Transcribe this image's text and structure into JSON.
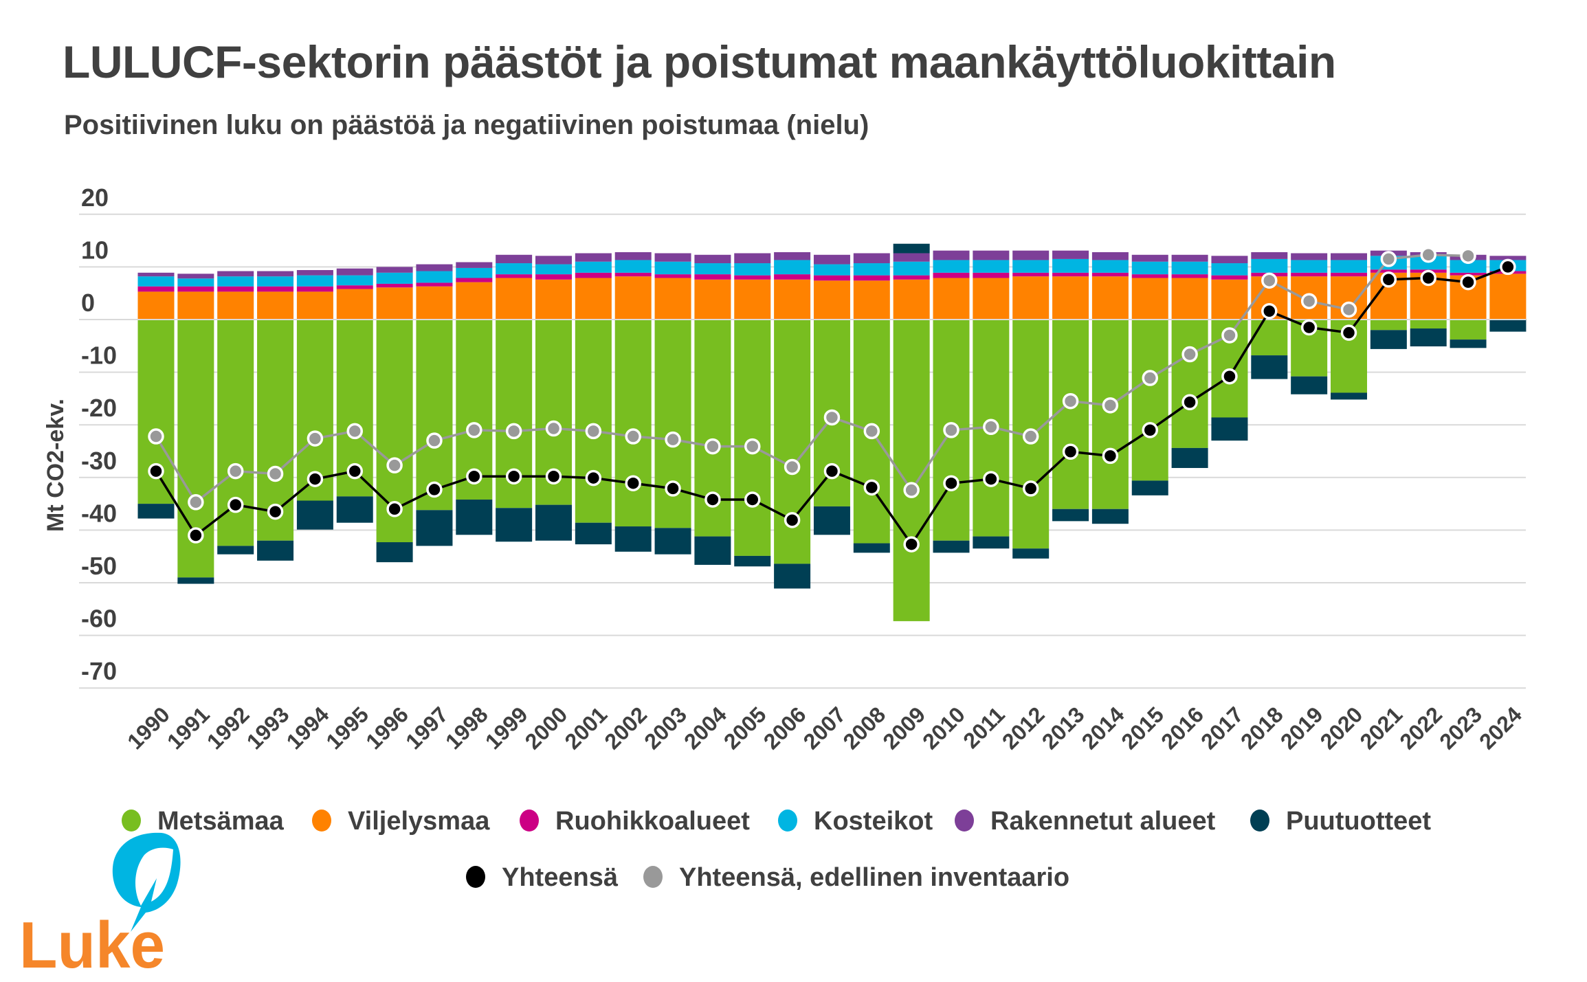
{
  "header": {
    "title": "LULUCF-sektorin päästöt ja poistumat maankäyttöluokittain",
    "subtitle": "Positiivinen luku on päästöä ja negatiivinen poistumaa (nielu)"
  },
  "logo": {
    "text": "Luke"
  },
  "chart_data": {
    "type": "bar",
    "stacked": true,
    "title": "LULUCF-sektorin päästöt ja poistumat maankäyttöluokittain",
    "subtitle": "Positiivinen luku on päästöä ja negatiivinen poistumaa (nielu)",
    "xlabel": "",
    "ylabel": "Mt CO2-ekv.",
    "ylim": [
      -70,
      20
    ],
    "yticks": [
      20,
      10,
      0,
      -10,
      -20,
      -30,
      -40,
      -50,
      -60,
      -70
    ],
    "grid": true,
    "legend_position": "bottom",
    "categories": [
      "1990",
      "1991",
      "1992",
      "1993",
      "1994",
      "1995",
      "1996",
      "1997",
      "1998",
      "1999",
      "2000",
      "2001",
      "2002",
      "2003",
      "2004",
      "2005",
      "2006",
      "2007",
      "2008",
      "2009",
      "2010",
      "2011",
      "2012",
      "2013",
      "2014",
      "2015",
      "2016",
      "2017",
      "2018",
      "2019",
      "2020",
      "2021",
      "2022",
      "2023",
      "2024"
    ],
    "series": [
      {
        "name": "Metsämaa",
        "color": "#78be20",
        "values": [
          -35.0,
          -49.0,
          -43.0,
          -42.0,
          -34.4,
          -33.6,
          -42.3,
          -36.2,
          -34.2,
          -35.8,
          -35.2,
          -38.6,
          -39.3,
          -39.6,
          -41.2,
          -44.9,
          -46.4,
          -35.5,
          -42.5,
          -57.3,
          -42.0,
          -41.2,
          -43.5,
          -36.0,
          -36.0,
          -30.6,
          -24.4,
          -18.6,
          -6.8,
          -10.8,
          -13.9,
          -2.0,
          -1.7,
          -3.8,
          0.0
        ]
      },
      {
        "name": "Viljelysmaa",
        "color": "#ff8200",
        "values": [
          5.3,
          5.3,
          5.3,
          5.3,
          5.3,
          5.8,
          6.1,
          6.3,
          7.1,
          7.9,
          7.6,
          7.9,
          8.2,
          7.9,
          7.6,
          7.6,
          7.6,
          7.4,
          7.4,
          7.6,
          7.9,
          7.9,
          8.2,
          8.2,
          8.2,
          7.9,
          7.9,
          7.6,
          8.2,
          8.2,
          8.2,
          8.9,
          8.9,
          8.4,
          8.7
        ]
      },
      {
        "name": "Ruohikkoalueet",
        "color": "#cc0084",
        "values": [
          1.0,
          1.0,
          1.0,
          1.0,
          1.0,
          0.7,
          0.7,
          0.7,
          0.8,
          0.7,
          1.0,
          1.0,
          0.7,
          0.7,
          1.0,
          0.8,
          1.0,
          1.0,
          1.0,
          0.8,
          1.0,
          1.0,
          0.7,
          0.7,
          0.7,
          0.7,
          0.7,
          0.8,
          0.7,
          0.7,
          0.7,
          0.6,
          0.6,
          0.5,
          0.5
        ]
      },
      {
        "name": "Kosteikot",
        "color": "#00b5e2",
        "values": [
          1.9,
          1.5,
          1.9,
          1.9,
          2.1,
          1.9,
          2.1,
          2.2,
          1.9,
          2.1,
          1.9,
          2.1,
          2.4,
          2.4,
          2.1,
          2.3,
          2.7,
          2.1,
          2.3,
          2.6,
          2.4,
          2.4,
          2.4,
          2.6,
          2.4,
          2.4,
          2.4,
          2.3,
          2.6,
          2.4,
          2.4,
          2.6,
          2.6,
          2.4,
          2.1
        ]
      },
      {
        "name": "Rakennetut alueet",
        "color": "#7d3f98",
        "values": [
          0.7,
          0.9,
          1.0,
          1.0,
          1.0,
          1.3,
          1.1,
          1.3,
          1.1,
          1.6,
          1.6,
          1.6,
          1.5,
          1.6,
          1.6,
          1.9,
          1.5,
          1.8,
          1.9,
          1.6,
          1.8,
          1.8,
          1.8,
          1.6,
          1.5,
          1.3,
          1.3,
          1.4,
          1.3,
          1.3,
          1.3,
          1.0,
          0.7,
          1.0,
          0.8
        ]
      },
      {
        "name": "Puutuotteet",
        "color": "#003f54",
        "values": [
          -2.8,
          -1.2,
          -1.6,
          -3.8,
          -5.5,
          -5.0,
          -3.8,
          -6.8,
          -6.7,
          -6.4,
          -6.8,
          -4.1,
          -4.8,
          -5.0,
          -5.4,
          -2.0,
          -4.7,
          -5.4,
          -1.8,
          1.8,
          -2.3,
          -2.3,
          -1.9,
          -2.3,
          -2.8,
          -2.8,
          -3.8,
          -4.4,
          -4.5,
          -3.4,
          -1.3,
          -3.6,
          -3.4,
          -1.6,
          -2.3
        ]
      }
    ],
    "lines": [
      {
        "name": "Yhteensä",
        "color": "#000000",
        "values": [
          -28.8,
          -41.0,
          -35.2,
          -36.5,
          -30.3,
          -28.8,
          -36.0,
          -32.3,
          -29.8,
          -29.8,
          -29.8,
          -30.1,
          -31.1,
          -32.1,
          -34.2,
          -34.2,
          -38.1,
          -28.8,
          -31.9,
          -42.7,
          -31.1,
          -30.3,
          -32.1,
          -25.1,
          -25.9,
          -21.0,
          -15.7,
          -10.8,
          1.6,
          -1.5,
          -2.5,
          7.6,
          7.9,
          7.1,
          10.0
        ]
      },
      {
        "name": "Yhteensä, edellinen inventaario",
        "color": "#999999",
        "values": [
          -22.2,
          -34.7,
          -28.8,
          -29.3,
          -22.6,
          -21.2,
          -27.7,
          -23.0,
          -21.0,
          -21.2,
          -20.7,
          -21.2,
          -22.2,
          -22.8,
          -24.1,
          -24.1,
          -28.0,
          -18.6,
          -21.2,
          -32.4,
          -21.0,
          -20.4,
          -22.2,
          -15.5,
          -16.3,
          -11.1,
          -6.6,
          -3.0,
          7.4,
          3.5,
          1.9,
          11.5,
          12.3,
          12.1,
          null
        ]
      }
    ]
  }
}
